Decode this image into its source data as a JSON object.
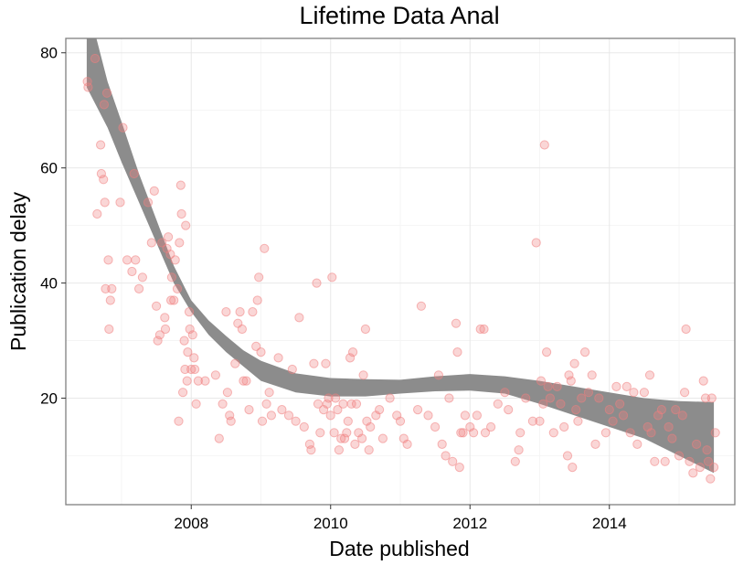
{
  "chart_data": {
    "type": "scatter",
    "title": "Lifetime Data Anal",
    "xlabel": "Date published",
    "ylabel": "Publication delay",
    "x_ticks": [
      "2008",
      "2010",
      "2012",
      "2014"
    ],
    "y_ticks": [
      "20",
      "40",
      "60",
      "80"
    ],
    "xlim": [
      2006.2,
      2015.8
    ],
    "ylim": [
      1.5,
      82.5
    ],
    "grid": true,
    "point_color": "#f08080",
    "band_color": "#8c8c8c",
    "series": [
      {
        "type": "points",
        "points": [
          [
            2006.51,
            75
          ],
          [
            2006.52,
            74
          ],
          [
            2006.62,
            79
          ],
          [
            2006.65,
            52
          ],
          [
            2006.7,
            64
          ],
          [
            2006.71,
            59
          ],
          [
            2006.74,
            58
          ],
          [
            2006.75,
            71
          ],
          [
            2006.76,
            54
          ],
          [
            2006.77,
            39
          ],
          [
            2006.79,
            73
          ],
          [
            2006.81,
            44
          ],
          [
            2006.82,
            32
          ],
          [
            2006.84,
            37
          ],
          [
            2006.86,
            39
          ],
          [
            2006.98,
            54
          ],
          [
            2007.02,
            67
          ],
          [
            2007.08,
            44
          ],
          [
            2007.15,
            42
          ],
          [
            2007.18,
            59
          ],
          [
            2007.2,
            44
          ],
          [
            2007.25,
            39
          ],
          [
            2007.3,
            41
          ],
          [
            2007.38,
            54
          ],
          [
            2007.43,
            47
          ],
          [
            2007.47,
            56
          ],
          [
            2007.5,
            36
          ],
          [
            2007.52,
            30
          ],
          [
            2007.55,
            31
          ],
          [
            2007.58,
            47
          ],
          [
            2007.62,
            34
          ],
          [
            2007.63,
            32
          ],
          [
            2007.65,
            46
          ],
          [
            2007.67,
            48
          ],
          [
            2007.7,
            45
          ],
          [
            2007.71,
            37
          ],
          [
            2007.72,
            41
          ],
          [
            2007.75,
            37
          ],
          [
            2007.77,
            44
          ],
          [
            2007.8,
            39
          ],
          [
            2007.82,
            16
          ],
          [
            2007.83,
            47
          ],
          [
            2007.85,
            57
          ],
          [
            2007.86,
            52
          ],
          [
            2007.88,
            21
          ],
          [
            2007.9,
            30
          ],
          [
            2007.91,
            25
          ],
          [
            2007.92,
            50
          ],
          [
            2007.94,
            23
          ],
          [
            2007.95,
            28
          ],
          [
            2007.97,
            35
          ],
          [
            2007.98,
            32
          ],
          [
            2008.0,
            25
          ],
          [
            2008.02,
            31
          ],
          [
            2008.04,
            27
          ],
          [
            2008.05,
            25
          ],
          [
            2008.07,
            19
          ],
          [
            2008.1,
            23
          ],
          [
            2008.2,
            23
          ],
          [
            2008.35,
            24
          ],
          [
            2008.4,
            13
          ],
          [
            2008.45,
            19
          ],
          [
            2008.5,
            35
          ],
          [
            2008.52,
            21
          ],
          [
            2008.55,
            17
          ],
          [
            2008.57,
            16
          ],
          [
            2008.63,
            26
          ],
          [
            2008.67,
            33
          ],
          [
            2008.7,
            35
          ],
          [
            2008.73,
            32
          ],
          [
            2008.75,
            23
          ],
          [
            2008.79,
            23
          ],
          [
            2008.83,
            18
          ],
          [
            2008.88,
            35
          ],
          [
            2008.93,
            29
          ],
          [
            2008.95,
            37
          ],
          [
            2008.97,
            41
          ],
          [
            2009.0,
            28
          ],
          [
            2009.02,
            16
          ],
          [
            2009.05,
            46
          ],
          [
            2009.08,
            19
          ],
          [
            2009.12,
            21
          ],
          [
            2009.15,
            17
          ],
          [
            2009.25,
            27
          ],
          [
            2009.3,
            18
          ],
          [
            2009.4,
            17
          ],
          [
            2009.45,
            25
          ],
          [
            2009.5,
            16
          ],
          [
            2009.55,
            34
          ],
          [
            2009.62,
            15
          ],
          [
            2009.7,
            12
          ],
          [
            2009.72,
            11
          ],
          [
            2009.76,
            26
          ],
          [
            2009.8,
            40
          ],
          [
            2009.82,
            19
          ],
          [
            2009.85,
            14
          ],
          [
            2009.9,
            18
          ],
          [
            2009.93,
            26
          ],
          [
            2009.95,
            19
          ],
          [
            2009.97,
            20
          ],
          [
            2010.0,
            17
          ],
          [
            2010.02,
            41
          ],
          [
            2010.05,
            14
          ],
          [
            2010.07,
            20
          ],
          [
            2010.1,
            18
          ],
          [
            2010.12,
            11
          ],
          [
            2010.15,
            13
          ],
          [
            2010.18,
            19
          ],
          [
            2010.2,
            13
          ],
          [
            2010.23,
            14
          ],
          [
            2010.25,
            16
          ],
          [
            2010.28,
            27
          ],
          [
            2010.3,
            19
          ],
          [
            2010.32,
            28
          ],
          [
            2010.35,
            12
          ],
          [
            2010.37,
            19
          ],
          [
            2010.4,
            14
          ],
          [
            2010.45,
            13
          ],
          [
            2010.47,
            24
          ],
          [
            2010.5,
            32
          ],
          [
            2010.52,
            16
          ],
          [
            2010.55,
            11
          ],
          [
            2010.57,
            15
          ],
          [
            2010.65,
            17
          ],
          [
            2010.7,
            18
          ],
          [
            2010.75,
            13
          ],
          [
            2010.85,
            20
          ],
          [
            2010.95,
            17
          ],
          [
            2011.0,
            16
          ],
          [
            2011.05,
            13
          ],
          [
            2011.1,
            12
          ],
          [
            2011.25,
            18
          ],
          [
            2011.3,
            36
          ],
          [
            2011.4,
            17
          ],
          [
            2011.5,
            15
          ],
          [
            2011.55,
            24
          ],
          [
            2011.6,
            12
          ],
          [
            2011.65,
            10
          ],
          [
            2011.7,
            20
          ],
          [
            2011.75,
            9
          ],
          [
            2011.8,
            33
          ],
          [
            2011.82,
            28
          ],
          [
            2011.85,
            8
          ],
          [
            2011.87,
            14
          ],
          [
            2011.9,
            14
          ],
          [
            2011.93,
            17
          ],
          [
            2012.0,
            15
          ],
          [
            2012.05,
            14
          ],
          [
            2012.1,
            17
          ],
          [
            2012.15,
            32
          ],
          [
            2012.2,
            32
          ],
          [
            2012.22,
            14
          ],
          [
            2012.3,
            15
          ],
          [
            2012.4,
            19
          ],
          [
            2012.5,
            21
          ],
          [
            2012.55,
            18
          ],
          [
            2012.65,
            9
          ],
          [
            2012.7,
            11
          ],
          [
            2012.72,
            14
          ],
          [
            2012.8,
            20
          ],
          [
            2012.9,
            16
          ],
          [
            2012.95,
            47
          ],
          [
            2013.0,
            16
          ],
          [
            2013.02,
            23
          ],
          [
            2013.05,
            19
          ],
          [
            2013.07,
            64
          ],
          [
            2013.1,
            28
          ],
          [
            2013.12,
            22
          ],
          [
            2013.15,
            20
          ],
          [
            2013.2,
            14
          ],
          [
            2013.25,
            22
          ],
          [
            2013.3,
            19
          ],
          [
            2013.35,
            15
          ],
          [
            2013.4,
            10
          ],
          [
            2013.42,
            24
          ],
          [
            2013.45,
            23
          ],
          [
            2013.47,
            8
          ],
          [
            2013.5,
            26
          ],
          [
            2013.52,
            18
          ],
          [
            2013.55,
            16
          ],
          [
            2013.6,
            20
          ],
          [
            2013.65,
            28
          ],
          [
            2013.7,
            21
          ],
          [
            2013.75,
            24
          ],
          [
            2013.8,
            12
          ],
          [
            2013.85,
            20
          ],
          [
            2013.95,
            14
          ],
          [
            2014.0,
            18
          ],
          [
            2014.05,
            16
          ],
          [
            2014.1,
            22
          ],
          [
            2014.15,
            19
          ],
          [
            2014.2,
            17
          ],
          [
            2014.25,
            22
          ],
          [
            2014.3,
            14
          ],
          [
            2014.35,
            21
          ],
          [
            2014.4,
            12
          ],
          [
            2014.5,
            21
          ],
          [
            2014.55,
            15
          ],
          [
            2014.58,
            24
          ],
          [
            2014.6,
            14
          ],
          [
            2014.65,
            9
          ],
          [
            2014.7,
            17
          ],
          [
            2014.75,
            18
          ],
          [
            2014.8,
            9
          ],
          [
            2014.85,
            15
          ],
          [
            2014.9,
            13
          ],
          [
            2014.95,
            18
          ],
          [
            2015.0,
            10
          ],
          [
            2015.05,
            17
          ],
          [
            2015.08,
            21
          ],
          [
            2015.1,
            32
          ],
          [
            2015.15,
            9
          ],
          [
            2015.2,
            7
          ],
          [
            2015.25,
            12
          ],
          [
            2015.3,
            8
          ],
          [
            2015.35,
            23
          ],
          [
            2015.38,
            20
          ],
          [
            2015.4,
            11
          ],
          [
            2015.42,
            9
          ],
          [
            2015.45,
            6
          ],
          [
            2015.47,
            20
          ],
          [
            2015.5,
            8
          ],
          [
            2015.52,
            14
          ]
        ]
      },
      {
        "type": "smooth-band",
        "x": [
          2006.5,
          2006.8,
          2007.0,
          2007.25,
          2007.5,
          2007.75,
          2008.0,
          2008.25,
          2008.5,
          2008.75,
          2009.0,
          2009.5,
          2010.0,
          2010.5,
          2011.0,
          2011.5,
          2012.0,
          2012.5,
          2013.0,
          2013.5,
          2014.0,
          2014.5,
          2015.0,
          2015.5
        ],
        "lower": [
          74,
          67,
          61,
          54,
          47,
          40,
          35,
          31,
          28,
          25.5,
          23,
          21,
          20.3,
          20.3,
          20.8,
          21.2,
          21.3,
          20.8,
          19,
          17,
          15,
          13,
          10,
          7
        ],
        "upper": [
          89,
          75,
          68,
          59,
          51,
          43,
          37,
          33.5,
          30.8,
          28.3,
          26.5,
          24.3,
          23.5,
          23.3,
          23.2,
          23.8,
          24.2,
          23.8,
          23,
          22,
          21,
          20,
          19.5,
          19.3
        ]
      }
    ]
  }
}
